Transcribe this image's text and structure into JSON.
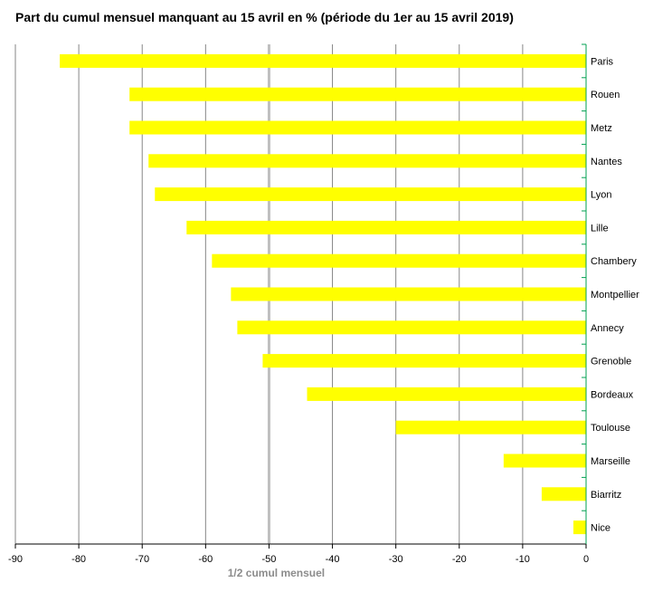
{
  "chart_data": {
    "type": "bar",
    "orientation": "horizontal",
    "title": "Part du cumul mensuel manquant au 15 avril en % (période du 1er au 15 avril 2019)",
    "xlabel": "",
    "ylabel": "",
    "xlim": [
      -90,
      0
    ],
    "xticks": [
      "-90",
      "-80",
      "-70",
      "-60",
      "-50",
      "-40",
      "-30",
      "-20",
      "-10",
      "0"
    ],
    "grid": "vertical",
    "bar_color": "#ffff00",
    "reference_line": {
      "value": -50,
      "label": "1/2 cumul mensuel",
      "color": "#bfbfbf"
    },
    "categories": [
      "Paris",
      "Rouen",
      "Metz",
      "Nantes",
      "Lyon",
      "Lille",
      "Chambery",
      "Montpellier",
      "Annecy",
      "Grenoble",
      "Bordeaux",
      "Toulouse",
      "Marseille",
      "Biarritz",
      "Nice"
    ],
    "values": [
      -83,
      -72,
      -72,
      -69,
      -68,
      -63,
      -59,
      -56,
      -55,
      -51,
      -44,
      -30,
      -13,
      -7,
      -2
    ]
  }
}
